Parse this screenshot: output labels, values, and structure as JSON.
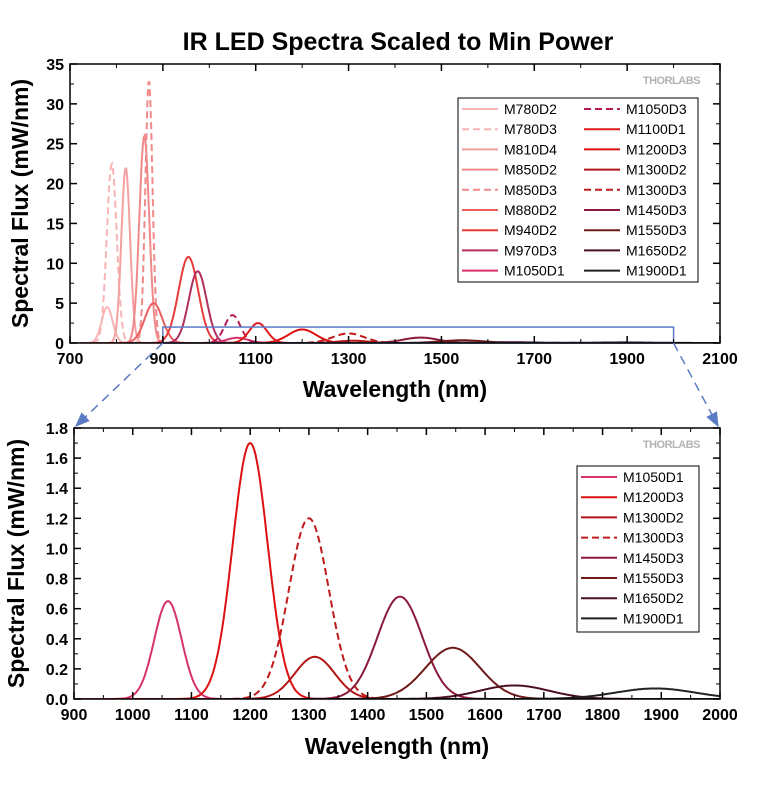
{
  "title": "IR LED Spectra Scaled to Min Power",
  "brand": "THORLABS",
  "chart_data": [
    {
      "type": "line",
      "xlabel": "Wavelength (nm)",
      "ylabel": "Spectral Flux (mW/nm)",
      "xlim": [
        700,
        2100
      ],
      "ylim": [
        0,
        35
      ],
      "xticks": [
        700,
        900,
        1100,
        1300,
        1500,
        1700,
        1900,
        2100
      ],
      "yticks": [
        0,
        5,
        10,
        15,
        20,
        25,
        30,
        35
      ],
      "grid": false,
      "legend_placement": "top-right, two columns",
      "zoom_box": {
        "x": [
          900,
          2000
        ],
        "y": [
          0,
          2
        ]
      },
      "series": [
        {
          "name": "M780D2",
          "color": "#f7b5b5",
          "dash": false,
          "peak": 780,
          "fwhm": 28,
          "height": 4.5
        },
        {
          "name": "M780D3",
          "color": "#f7b5b5",
          "dash": true,
          "peak": 790,
          "fwhm": 25,
          "height": 22.5
        },
        {
          "name": "M810D4",
          "color": "#f4a0a0",
          "dash": false,
          "peak": 820,
          "fwhm": 22,
          "height": 22
        },
        {
          "name": "M850D2",
          "color": "#f08a8a",
          "dash": false,
          "peak": 860,
          "fwhm": 25,
          "height": 26
        },
        {
          "name": "M850D3",
          "color": "#f08a8a",
          "dash": true,
          "peak": 870,
          "fwhm": 18,
          "height": 33
        },
        {
          "name": "M880D2",
          "color": "#ec5f5f",
          "dash": false,
          "peak": 880,
          "fwhm": 45,
          "height": 5
        },
        {
          "name": "M940D2",
          "color": "#e63c3c",
          "dash": false,
          "peak": 955,
          "fwhm": 50,
          "height": 10.8
        },
        {
          "name": "M970D3",
          "color": "#b03060",
          "dash": false,
          "peak": 975,
          "fwhm": 45,
          "height": 9
        },
        {
          "name": "M1050D1",
          "color": "#d6336c",
          "dash": false,
          "peak": 1060,
          "fwhm": 55,
          "height": 0.65
        },
        {
          "name": "M1050D3",
          "color": "#b5195a",
          "dash": true,
          "peak": 1050,
          "fwhm": 40,
          "height": 3.5
        },
        {
          "name": "M1100D1",
          "color": "#e01b1b",
          "dash": false,
          "peak": 1105,
          "fwhm": 45,
          "height": 2.5
        },
        {
          "name": "M1200D3",
          "color": "#dd1111",
          "dash": false,
          "peak": 1200,
          "fwhm": 70,
          "height": 1.7
        },
        {
          "name": "M1300D2",
          "color": "#b31515",
          "dash": false,
          "peak": 1310,
          "fwhm": 80,
          "height": 0.28
        },
        {
          "name": "M1300D3",
          "color": "#c01a1a",
          "dash": true,
          "peak": 1300,
          "fwhm": 80,
          "height": 1.2
        },
        {
          "name": "M1450D3",
          "color": "#8b1a3a",
          "dash": false,
          "peak": 1455,
          "fwhm": 90,
          "height": 0.68
        },
        {
          "name": "M1550D3",
          "color": "#6e1a1a",
          "dash": false,
          "peak": 1545,
          "fwhm": 110,
          "height": 0.34
        },
        {
          "name": "M1650D2",
          "color": "#4a1020",
          "dash": false,
          "peak": 1650,
          "fwhm": 140,
          "height": 0.09
        },
        {
          "name": "M1900D1",
          "color": "#222222",
          "dash": false,
          "peak": 1890,
          "fwhm": 160,
          "height": 0.07
        }
      ]
    },
    {
      "type": "line",
      "xlabel": "Wavelength (nm)",
      "ylabel": "Spectral Flux (mW/nm)",
      "xlim": [
        900,
        2000
      ],
      "ylim": [
        0,
        1.8
      ],
      "xticks": [
        900,
        1000,
        1100,
        1200,
        1300,
        1400,
        1500,
        1600,
        1700,
        1800,
        1900,
        2000
      ],
      "yticks": [
        0.0,
        0.2,
        0.4,
        0.6,
        0.8,
        1.0,
        1.2,
        1.4,
        1.6,
        1.8
      ],
      "grid": false,
      "legend_placement": "top-right",
      "series": [
        {
          "name": "M1050D1",
          "color": "#d6336c",
          "dash": false,
          "peak": 1060,
          "fwhm": 55,
          "height": 0.65
        },
        {
          "name": "M1200D3",
          "color": "#dd1111",
          "dash": false,
          "peak": 1200,
          "fwhm": 70,
          "height": 1.7
        },
        {
          "name": "M1300D2",
          "color": "#b31515",
          "dash": false,
          "peak": 1310,
          "fwhm": 80,
          "height": 0.28
        },
        {
          "name": "M1300D3",
          "color": "#c01a1a",
          "dash": true,
          "peak": 1300,
          "fwhm": 80,
          "height": 1.2
        },
        {
          "name": "M1450D3",
          "color": "#8b1a3a",
          "dash": false,
          "peak": 1455,
          "fwhm": 90,
          "height": 0.68
        },
        {
          "name": "M1550D3",
          "color": "#6e1a1a",
          "dash": false,
          "peak": 1545,
          "fwhm": 110,
          "height": 0.34
        },
        {
          "name": "M1650D2",
          "color": "#4a1020",
          "dash": false,
          "peak": 1650,
          "fwhm": 140,
          "height": 0.09
        },
        {
          "name": "M1900D1",
          "color": "#222222",
          "dash": false,
          "peak": 1890,
          "fwhm": 160,
          "height": 0.07
        }
      ]
    }
  ]
}
